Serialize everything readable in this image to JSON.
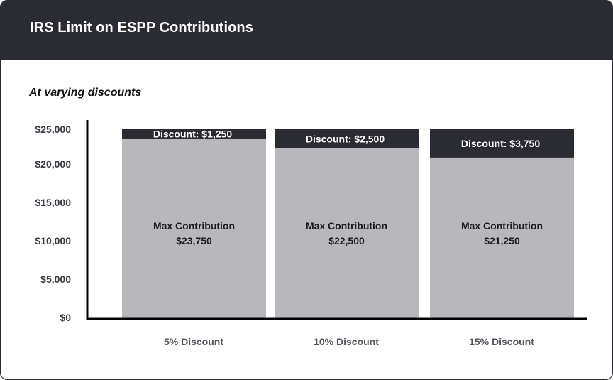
{
  "header": {
    "title": "IRS Limit on ESPP Contributions"
  },
  "subtitle": "At varying discounts",
  "colors": {
    "header_bg": "#2b2b33",
    "discount": "#2b2b33",
    "contribution": "#b8b8bc",
    "axis": "#000000"
  },
  "chart_data": {
    "type": "bar",
    "stacked": true,
    "title": "IRS Limit on ESPP Contributions",
    "subtitle": "At varying discounts",
    "categories": [
      "5% Discount",
      "10% Discount",
      "15% Discount"
    ],
    "series": [
      {
        "name": "Max Contribution",
        "values": [
          23750,
          22500,
          21250
        ]
      },
      {
        "name": "Discount",
        "values": [
          1250,
          2500,
          3750
        ]
      }
    ],
    "max_label_title": "Max Contribution",
    "max_label_values": [
      "$23,750",
      "$22,500",
      "$21,250"
    ],
    "discount_labels": [
      "Discount: $1,250",
      "Discount: $2,500",
      "Discount: $3,750"
    ],
    "yticks": [
      0,
      5000,
      10000,
      15000,
      20000,
      25000
    ],
    "ytick_labels": [
      "$0",
      "$5,000",
      "$10,000",
      "$15,000",
      "$20,000",
      "$25,000"
    ],
    "ylim": [
      0,
      25000
    ],
    "xlabel": "",
    "ylabel": ""
  }
}
